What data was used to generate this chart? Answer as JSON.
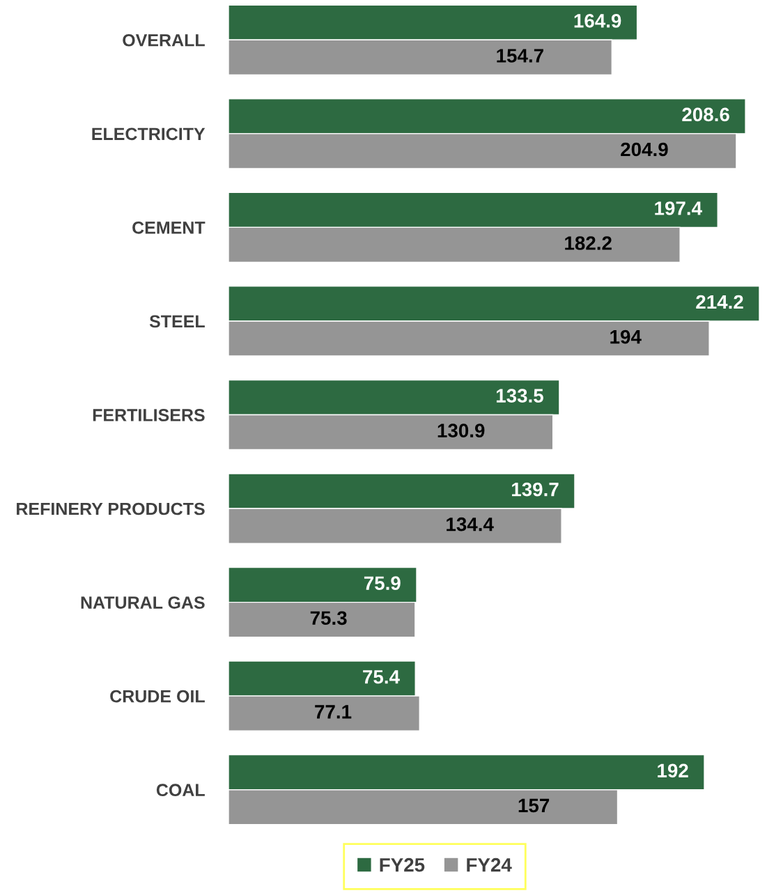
{
  "chart_data": {
    "type": "bar",
    "orientation": "horizontal",
    "categories": [
      "OVERALL",
      "ELECTRICITY",
      "CEMENT",
      "STEEL",
      "FERTILISERS",
      "REFINERY PRODUCTS",
      "NATURAL GAS",
      "CRUDE OIL",
      "COAL"
    ],
    "series": [
      {
        "name": "FY25",
        "color": "#2d6a41",
        "values": [
          164.9,
          208.6,
          197.4,
          214.2,
          133.5,
          139.7,
          75.9,
          75.4,
          192
        ]
      },
      {
        "name": "FY24",
        "color": "#959595",
        "values": [
          154.7,
          204.9,
          182.2,
          194,
          130.9,
          134.4,
          75.3,
          77.1,
          157
        ]
      }
    ],
    "data_labels": true,
    "legend": "bottom",
    "grid": false
  }
}
